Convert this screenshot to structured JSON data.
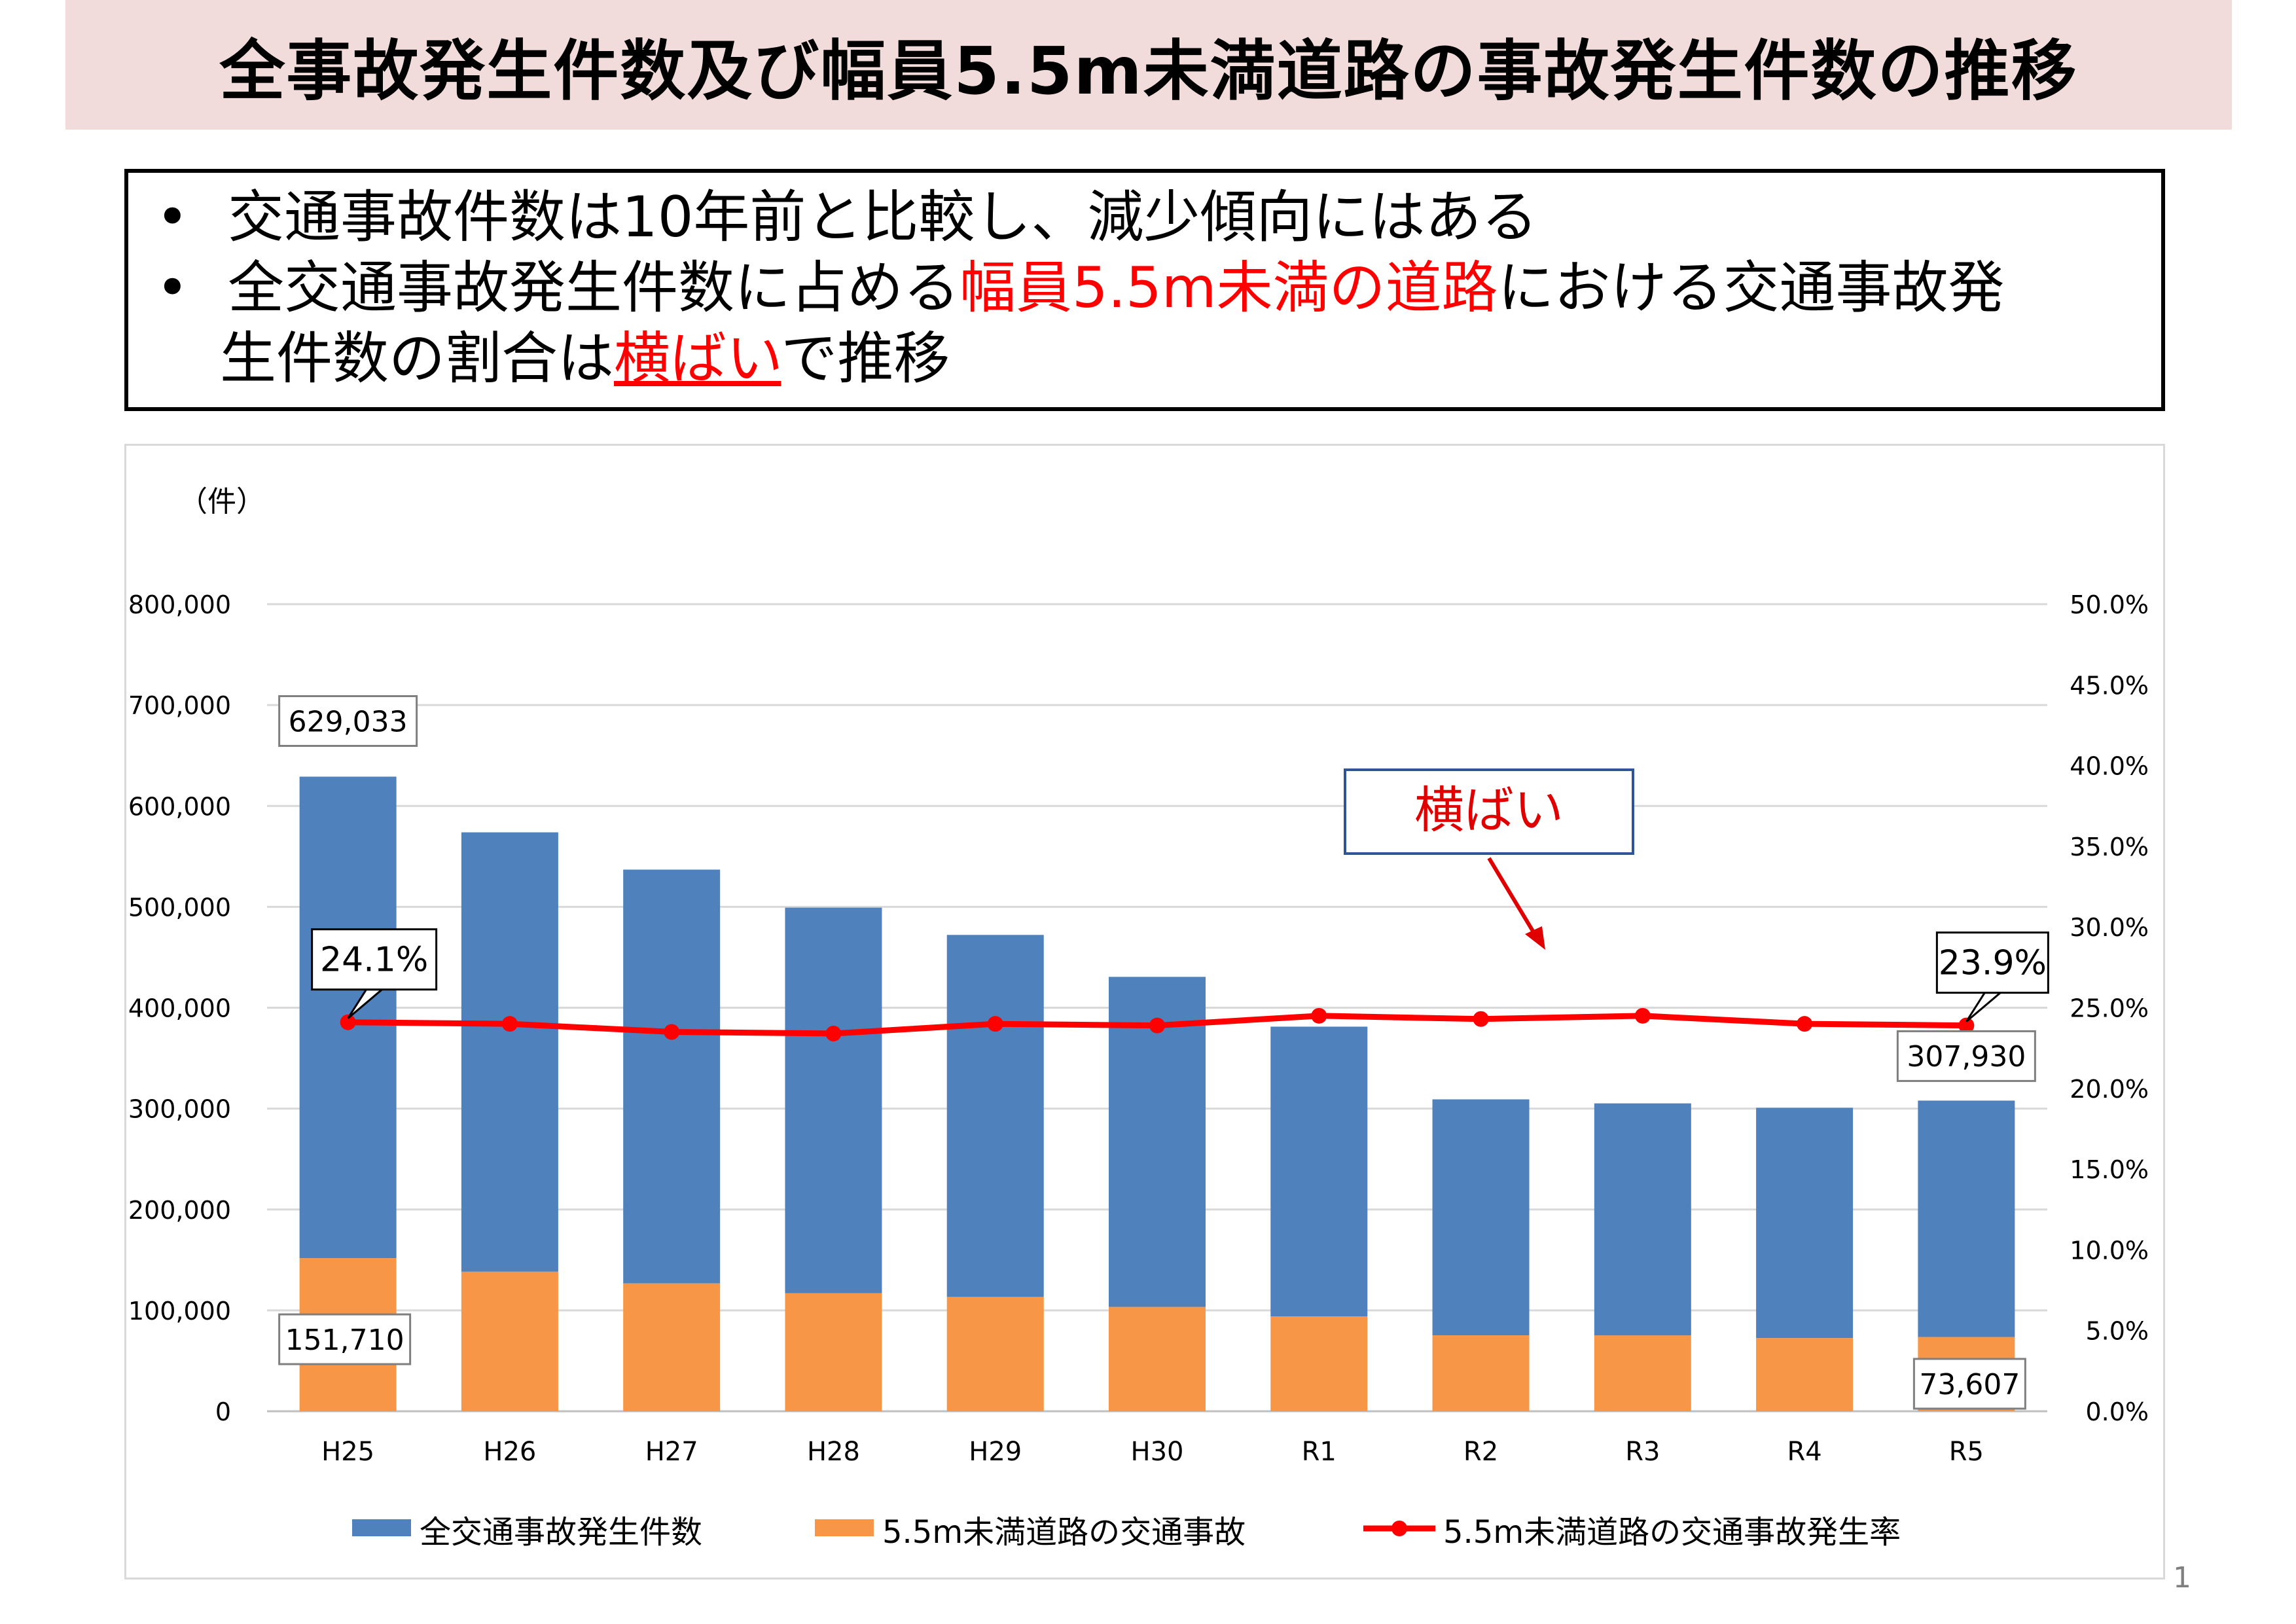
{
  "header": {
    "title": "全事故発生件数及び幅員5.5m未満道路の事故発生件数の推移"
  },
  "summary": {
    "bullet1": "交通事故件数は10年前と比較し、減少傾向にはある",
    "bullet2_pre": "全交通事故発生件数に占める",
    "bullet2_highlight": "幅員5.5m未満の道路",
    "bullet2_post": "における交通事故発",
    "bullet2_line2_pre": "生件数の割合は",
    "bullet2_line2_highlight": "横ばい",
    "bullet2_line2_post": "で推移",
    "bullet_symbol": "•"
  },
  "chart_data": {
    "type": "bar",
    "stacked": true,
    "categories": [
      "H25",
      "H26",
      "H27",
      "H28",
      "H29",
      "H30",
      "R1",
      "R2",
      "R3",
      "R4",
      "R5"
    ],
    "series": [
      {
        "name": "全交通事故発生件数",
        "kind": "bar",
        "color": "#4f81bd",
        "values": [
          629033,
          573842,
          536899,
          499201,
          472165,
          430601,
          381237,
          309178,
          305196,
          300839,
          307930
        ]
      },
      {
        "name": "5.5m未満道路の交通事故",
        "kind": "bar",
        "color": "#f79646",
        "values": [
          151710,
          138300,
          126700,
          117100,
          113300,
          103400,
          93900,
          75200,
          75100,
          72500,
          73607
        ]
      },
      {
        "name": "5.5m未満道路の交通事故発生率",
        "kind": "line",
        "axis": "right",
        "color": "#ff0000",
        "values": [
          24.1,
          24.0,
          23.5,
          23.4,
          24.0,
          23.9,
          24.5,
          24.3,
          24.5,
          24.0,
          23.9
        ]
      }
    ],
    "y_left": {
      "min": 0,
      "max": 800000,
      "step": 100000,
      "unit_label": "（件）",
      "tick_labels": [
        "0",
        "100,000",
        "200,000",
        "300,000",
        "400,000",
        "500,000",
        "600,000",
        "700,000",
        "800,000"
      ]
    },
    "y_right": {
      "min": 0,
      "max": 50,
      "step": 5,
      "tick_labels": [
        "0.0%",
        "5.0%",
        "10.0%",
        "15.0%",
        "20.0%",
        "25.0%",
        "30.0%",
        "35.0%",
        "40.0%",
        "45.0%",
        "50.0%"
      ]
    },
    "annotations": {
      "total_first": "629,033",
      "total_last": "307,930",
      "narrow_first": "151,710",
      "narrow_last": "73,607",
      "rate_first": "24.1%",
      "rate_last": "23.9%",
      "trend_label": "横ばい"
    },
    "grid": true,
    "legend_position": "bottom"
  },
  "footer": {
    "page_number": "1"
  }
}
